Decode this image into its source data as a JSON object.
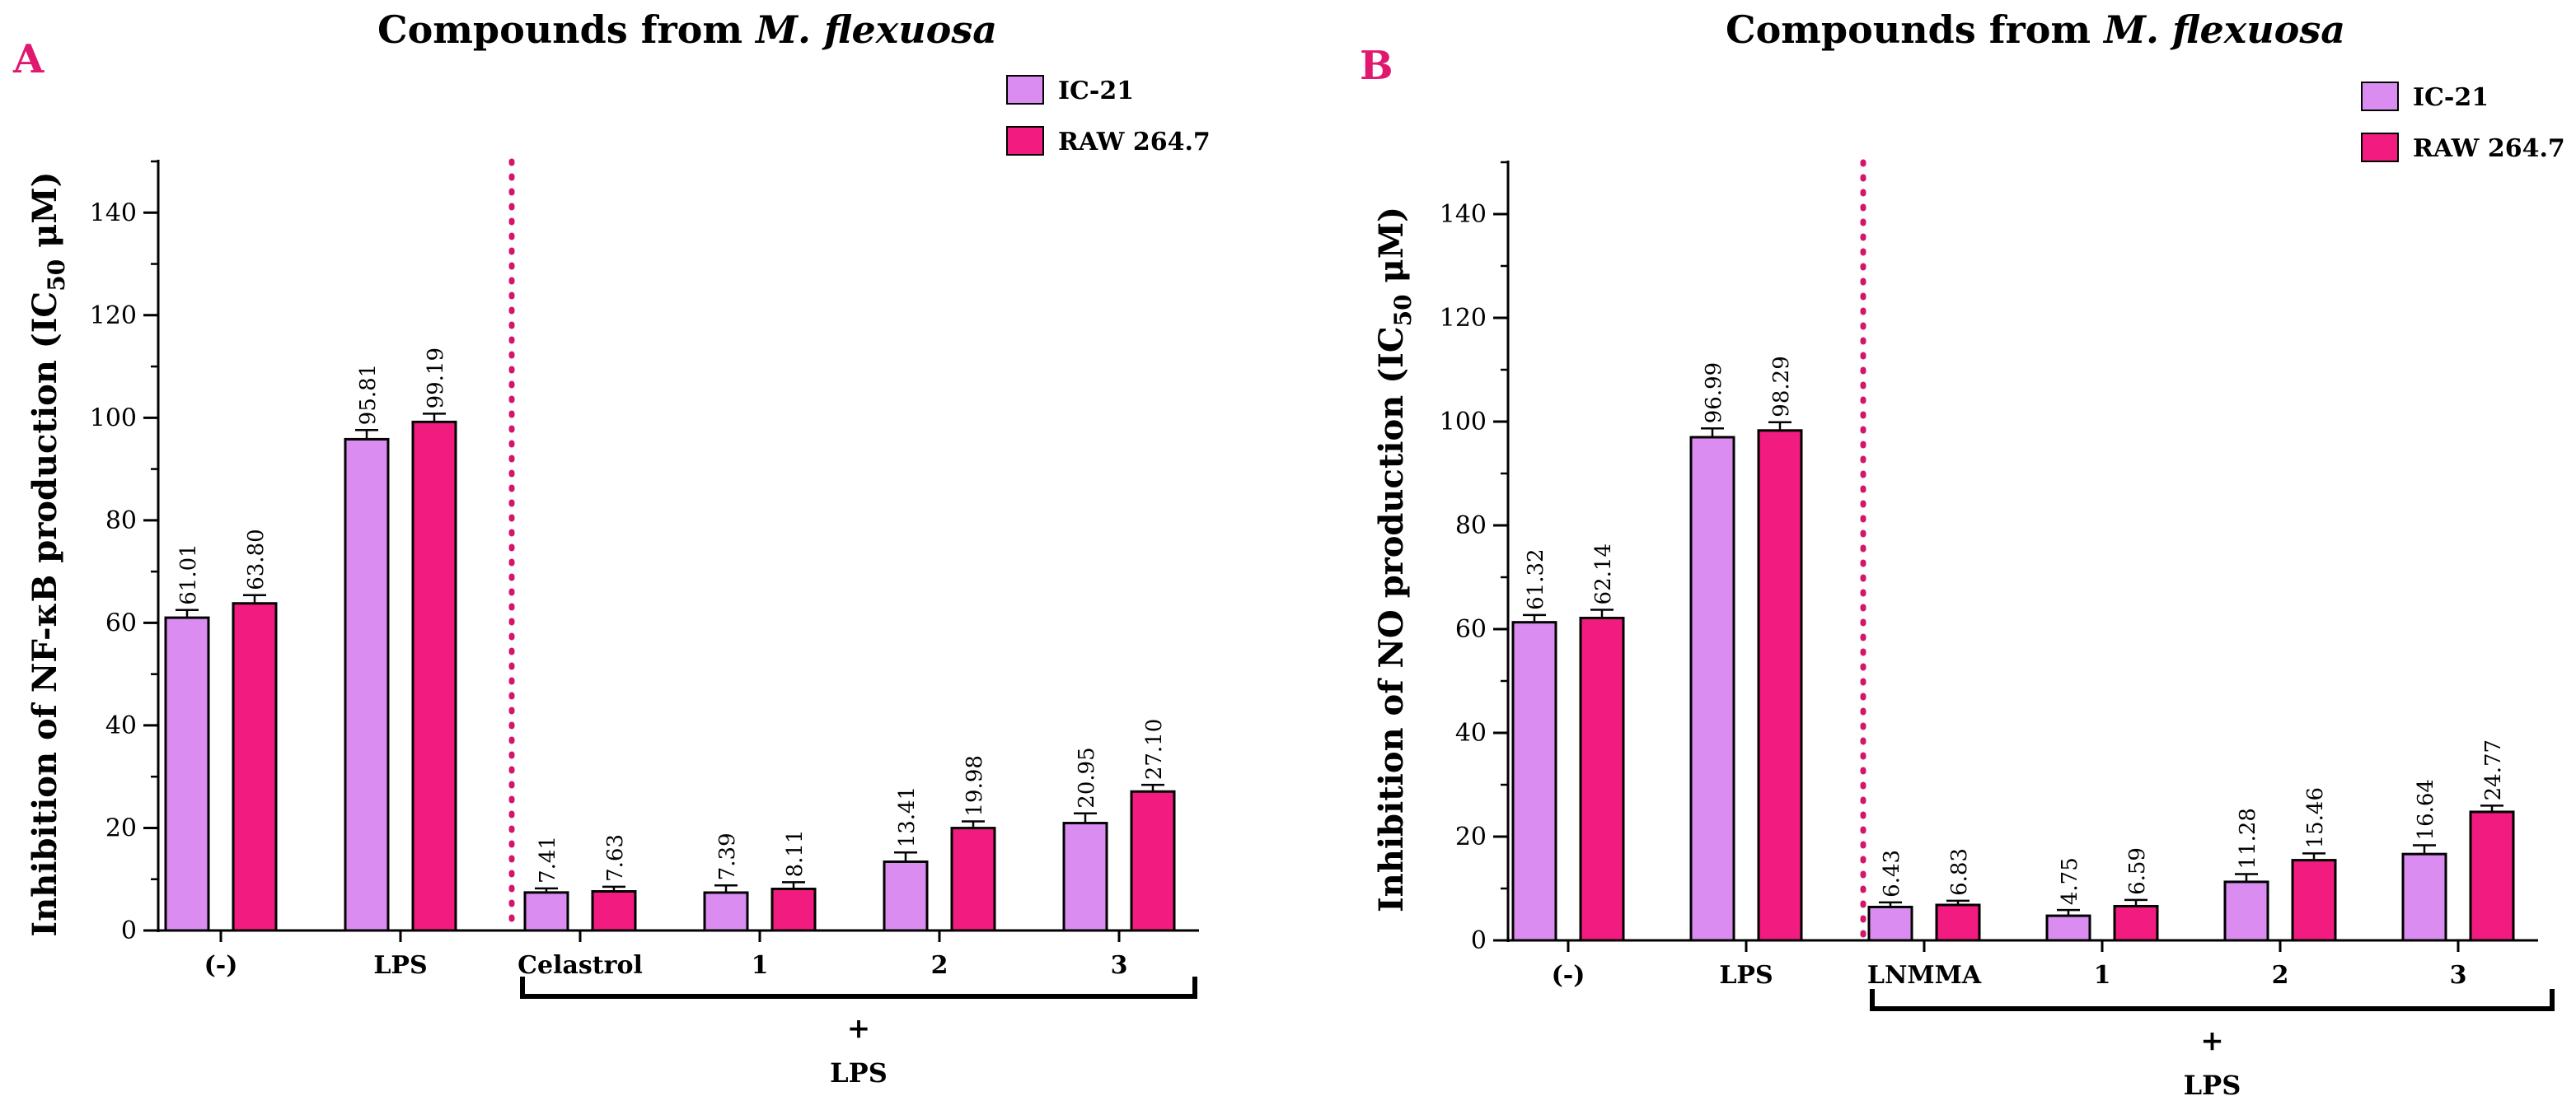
{
  "colors": {
    "ic21": "#DA8CF0",
    "raw": "#F21B7F",
    "panel_letter": "#E0186E",
    "divider": "#D4166B",
    "axis": "#000000"
  },
  "chart_data": [
    {
      "type": "bar",
      "panel_label": "A",
      "title_prefix": "Compounds from ",
      "title_italic": "M. flexuosa",
      "ylabel_main": "Inhibition of NF-κB production (IC",
      "ylabel_sub": "50",
      "ylabel_end": " μM)",
      "ylim": [
        0,
        150
      ],
      "yticks": [
        "0",
        "20",
        "40",
        "60",
        "80",
        "100",
        "120",
        "140"
      ],
      "categories": [
        "(-)",
        "LPS",
        "Celastrol",
        "1",
        "2",
        "3"
      ],
      "series": [
        {
          "name": "IC-21",
          "values": [
            61.01,
            95.81,
            7.41,
            7.39,
            13.41,
            20.95
          ],
          "errors": [
            1.5,
            1.8,
            0.8,
            1.4,
            1.8,
            1.9
          ],
          "labels": [
            "61.01",
            "95.81",
            "7.41",
            "7.39",
            "13.41",
            "20.95"
          ]
        },
        {
          "name": "RAW 264.7",
          "values": [
            63.8,
            99.19,
            7.63,
            8.11,
            19.98,
            27.1
          ],
          "errors": [
            1.6,
            1.6,
            0.9,
            1.3,
            1.3,
            1.3
          ],
          "labels": [
            "63.80",
            "99.19",
            "7.63",
            "8.11",
            "19.98",
            "27.10"
          ]
        }
      ],
      "legend": [
        "IC-21",
        "RAW 264.7"
      ],
      "bracket_plus": "+",
      "bracket_label": "LPS"
    },
    {
      "type": "bar",
      "panel_label": "B",
      "title_prefix": "Compounds from ",
      "title_italic": "M. flexuosa",
      "ylabel_main": "Inhibition of NO production (IC",
      "ylabel_sub": "50",
      "ylabel_end": " μM)",
      "ylim": [
        0,
        150
      ],
      "yticks": [
        "0",
        "20",
        "40",
        "60",
        "80",
        "100",
        "120",
        "140"
      ],
      "categories": [
        "(-)",
        "LPS",
        "LNMMA",
        "1",
        "2",
        "3"
      ],
      "series": [
        {
          "name": "IC-21",
          "values": [
            61.32,
            96.99,
            6.43,
            4.75,
            11.28,
            16.64
          ],
          "errors": [
            1.4,
            1.7,
            0.9,
            1.1,
            1.5,
            1.7
          ],
          "labels": [
            "61.32",
            "96.99",
            "6.43",
            "4.75",
            "11.28",
            "16.64"
          ]
        },
        {
          "name": "RAW 264.7",
          "values": [
            62.14,
            98.29,
            6.83,
            6.59,
            15.46,
            24.77
          ],
          "errors": [
            1.6,
            1.6,
            0.8,
            1.2,
            1.3,
            1.2
          ],
          "labels": [
            "62.14",
            "98.29",
            "6.83",
            "6.59",
            "15.46",
            "24.77"
          ]
        }
      ],
      "legend": [
        "IC-21",
        "RAW 264.7"
      ],
      "bracket_plus": "+",
      "bracket_label": "LPS"
    }
  ]
}
